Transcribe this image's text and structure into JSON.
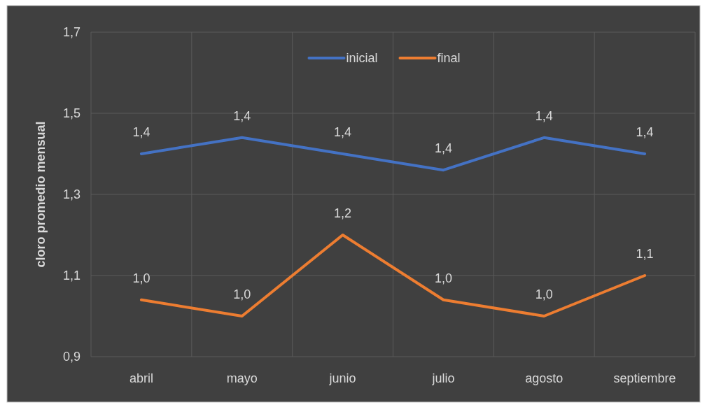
{
  "chart_data": {
    "type": "line",
    "ylabel": "cloro promedio mensual",
    "categories": [
      "abril",
      "mayo",
      "junio",
      "julio",
      "agosto",
      "septiembre"
    ],
    "series": [
      {
        "name": "inicial",
        "color": "#4472c4",
        "values": [
          1.4,
          1.44,
          1.4,
          1.36,
          1.44,
          1.4
        ],
        "value_labels": [
          "1,4",
          "1,4",
          "1,4",
          "1,4",
          "1,4",
          "1,4"
        ]
      },
      {
        "name": "final",
        "color": "#ed7d31",
        "values": [
          1.04,
          1.0,
          1.2,
          1.04,
          1.0,
          1.1
        ],
        "value_labels": [
          "1,0",
          "1,0",
          "1,2",
          "1,0",
          "1,0",
          "1,1"
        ]
      }
    ],
    "ylim": [
      0.9,
      1.7
    ],
    "yticks": [
      {
        "value": 0.9,
        "label": "0,9"
      },
      {
        "value": 1.1,
        "label": "1,1"
      },
      {
        "value": 1.3,
        "label": "1,3"
      },
      {
        "value": 1.5,
        "label": "1,5"
      },
      {
        "value": 1.7,
        "label": "1,7"
      }
    ],
    "grid": true,
    "legend": "top",
    "marker": "none",
    "line_style": "solid"
  }
}
